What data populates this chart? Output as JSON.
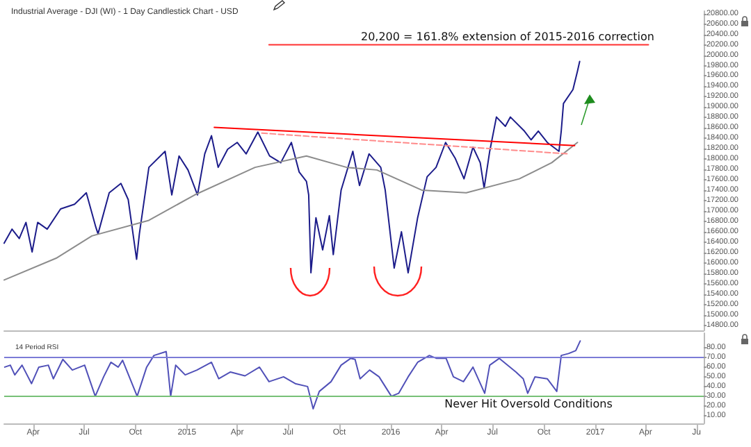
{
  "chart_data": [
    {
      "type": "line",
      "title": "Industrial Average - DJI (WI) - 1 Day Candlestick Chart - USD",
      "xlim": [
        "2014-02-08",
        "2017-07-14"
      ],
      "ylim": [
        14700,
        20850
      ],
      "yticks": [
        {
          "value": 14800,
          "label": "14800.00"
        },
        {
          "value": 15000,
          "label": "15000.00"
        },
        {
          "value": 15200,
          "label": "15200.00"
        },
        {
          "value": 15400,
          "label": "15400.00"
        },
        {
          "value": 15600,
          "label": "15600.00"
        },
        {
          "value": 15800,
          "label": "15800.00"
        },
        {
          "value": 16000,
          "label": "16000.00"
        },
        {
          "value": 16200,
          "label": "16200.00"
        },
        {
          "value": 16400,
          "label": "16400.00"
        },
        {
          "value": 16600,
          "label": "16600.00"
        },
        {
          "value": 16800,
          "label": "16800.00"
        },
        {
          "value": 17000,
          "label": "17000.00"
        },
        {
          "value": 17200,
          "label": "17200.00"
        },
        {
          "value": 17400,
          "label": "17400.00"
        },
        {
          "value": 17600,
          "label": "17600.00"
        },
        {
          "value": 17800,
          "label": "17800.00"
        },
        {
          "value": 18000,
          "label": "18000.00"
        },
        {
          "value": 18200,
          "label": "18200.00"
        },
        {
          "value": 18400,
          "label": "18400.00"
        },
        {
          "value": 18600,
          "label": "18600.00"
        },
        {
          "value": 18800,
          "label": "18800.00"
        },
        {
          "value": 19000,
          "label": "19000.00"
        },
        {
          "value": 19200,
          "label": "19200.00"
        },
        {
          "value": 19400,
          "label": "19400.00"
        },
        {
          "value": 19600,
          "label": "19600.00"
        },
        {
          "value": 19800,
          "label": "19800.00"
        },
        {
          "value": 20000,
          "label": "20000.00"
        },
        {
          "value": 20200,
          "label": "20200.00"
        },
        {
          "value": 20400,
          "label": "20400.00"
        },
        {
          "value": 20600,
          "label": "20600.00"
        },
        {
          "value": 20800,
          "label": "20800.00"
        }
      ],
      "tick_labels": "y",
      "grid": false,
      "marker": "none",
      "annotations": [
        {
          "text": "20,200 = 161.8% extension of 2015-2016 correction",
          "x": "2016-07-28",
          "y": 20200
        }
      ],
      "series": [
        {
          "color": "#1c1c8a",
          "x": [
            "2014-02-08",
            "2014-02-22",
            "2014-03-07",
            "2014-03-19",
            "2014-03-30",
            "2014-04-09",
            "2014-04-26",
            "2014-05-20",
            "2014-06-14",
            "2014-07-05",
            "2014-07-22",
            "2014-07-26",
            "2014-08-15",
            "2014-09-05",
            "2014-09-18",
            "2014-10-03",
            "2014-10-08",
            "2014-10-25",
            "2014-11-23",
            "2014-12-05",
            "2014-12-18",
            "2015-01-03",
            "2015-01-20",
            "2015-02-02",
            "2015-02-14",
            "2015-02-26",
            "2015-03-15",
            "2015-04-01",
            "2015-04-17",
            "2015-05-08",
            "2015-05-29",
            "2015-06-18",
            "2015-07-07",
            "2015-07-21",
            "2015-08-03",
            "2015-08-07",
            "2015-08-11",
            "2015-08-20",
            "2015-09-01",
            "2015-09-13",
            "2015-09-20",
            "2015-10-04",
            "2015-10-25",
            "2015-11-06",
            "2015-11-23",
            "2015-12-14",
            "2015-12-22",
            "2016-01-07",
            "2016-01-20",
            "2016-02-01",
            "2016-02-18",
            "2016-03-06",
            "2016-03-22",
            "2016-04-08",
            "2016-04-25",
            "2016-05-11",
            "2016-05-27",
            "2016-06-09",
            "2016-06-16",
            "2016-06-26",
            "2016-07-08",
            "2016-07-24",
            "2016-08-02",
            "2016-08-27",
            "2016-09-08",
            "2016-09-21",
            "2016-10-07",
            "2016-10-28",
            "2016-11-01",
            "2016-11-05",
            "2016-11-22",
            "2016-11-30",
            "2016-12-04"
          ],
          "values": [
            16380,
            16650,
            16470,
            16780,
            16210,
            16780,
            16650,
            17040,
            17130,
            17350,
            16690,
            16560,
            17350,
            17530,
            17220,
            16070,
            16560,
            17840,
            18150,
            17310,
            18060,
            17790,
            17310,
            18100,
            18450,
            17840,
            18190,
            18320,
            18100,
            18520,
            18060,
            17930,
            18320,
            17750,
            17570,
            17310,
            15810,
            16870,
            16250,
            16910,
            16160,
            17400,
            18150,
            17490,
            18100,
            17840,
            17400,
            15900,
            16600,
            15810,
            16870,
            17660,
            17840,
            18320,
            18020,
            17620,
            18230,
            17930,
            17440,
            18150,
            18810,
            18630,
            18810,
            18540,
            18370,
            18540,
            18320,
            18150,
            18540,
            19070,
            19340,
            19690,
            19880
          ]
        },
        {
          "color": "#8c8c8c",
          "x": [
            "2014-02-08",
            "2014-05-12",
            "2014-07-15",
            "2014-10-25",
            "2015-01-15",
            "2015-05-03",
            "2015-08-03",
            "2015-10-14",
            "2015-12-07",
            "2016-02-26",
            "2016-05-15",
            "2016-08-18",
            "2016-10-15",
            "2016-11-30"
          ],
          "values": [
            15670,
            16090,
            16520,
            16820,
            17310,
            17840,
            18060,
            17840,
            17790,
            17400,
            17350,
            17620,
            17930,
            18320
          ]
        },
        {
          "color": "#ff0000",
          "x": [
            "2015-02-19",
            "2016-11-25"
          ],
          "values": [
            18610,
            18260
          ]
        },
        {
          "color": "#ff8a8a",
          "line_style": "dashed",
          "x": [
            "2015-05-15",
            "2016-11-14"
          ],
          "values": [
            18500,
            18100
          ]
        },
        {
          "color": "#ff3030",
          "x": [
            "2015-05-28",
            "2017-04-06"
          ],
          "values": [
            20200,
            20200
          ]
        }
      ]
    },
    {
      "type": "line",
      "title": "14 Period RSI",
      "xlim": [
        "2014-02-08",
        "2017-07-14"
      ],
      "ylim": [
        2,
        95
      ],
      "xticks": [
        {
          "value": "2014-04-01",
          "label": "Apr"
        },
        {
          "value": "2014-07-01",
          "label": "Jul"
        },
        {
          "value": "2014-10-01",
          "label": "Oct"
        },
        {
          "value": "2015-01-01",
          "label": "2015"
        },
        {
          "value": "2015-04-01",
          "label": "Apr"
        },
        {
          "value": "2015-07-01",
          "label": "Jul"
        },
        {
          "value": "2015-10-01",
          "label": "Oct"
        },
        {
          "value": "2016-01-01",
          "label": "2016"
        },
        {
          "value": "2016-04-01",
          "label": "Apr"
        },
        {
          "value": "2016-07-01",
          "label": "Jul"
        },
        {
          "value": "2016-10-01",
          "label": "Oct"
        },
        {
          "value": "2017-01-01",
          "label": "2017"
        },
        {
          "value": "2017-04-01",
          "label": "Apr"
        },
        {
          "value": "2017-07-01",
          "label": "Ju"
        }
      ],
      "yticks": [
        {
          "value": 10,
          "label": "10.00"
        },
        {
          "value": 20,
          "label": "20.00"
        },
        {
          "value": 30,
          "label": "30.00"
        },
        {
          "value": 40,
          "label": "40.00"
        },
        {
          "value": 50,
          "label": "50.00"
        },
        {
          "value": 60,
          "label": "60.00"
        },
        {
          "value": 70,
          "label": "70.00"
        },
        {
          "value": 80,
          "label": "80.00"
        }
      ],
      "grid": false,
      "marker": "none",
      "ref_lines": [
        {
          "axis": "y",
          "value": 70,
          "color": "#7b7bd6"
        },
        {
          "axis": "y",
          "value": 30,
          "color": "#77c077"
        }
      ],
      "annotations": [
        "Never Hit Oversold Conditions"
      ],
      "series": [
        {
          "color": "#5050b8",
          "x": [
            "2014-02-09",
            "2014-02-19",
            "2014-02-27",
            "2014-03-12",
            "2014-03-29",
            "2014-04-11",
            "2014-04-28",
            "2014-05-07",
            "2014-05-24",
            "2014-06-10",
            "2014-07-02",
            "2014-07-21",
            "2014-08-05",
            "2014-08-18",
            "2014-08-31",
            "2014-09-08",
            "2014-10-04",
            "2014-10-21",
            "2014-11-03",
            "2014-11-25",
            "2014-12-03",
            "2014-12-12",
            "2014-12-29",
            "2015-01-19",
            "2015-02-14",
            "2015-02-27",
            "2015-03-20",
            "2015-04-15",
            "2015-05-11",
            "2015-05-28",
            "2015-06-23",
            "2015-07-14",
            "2015-08-05",
            "2015-08-15",
            "2015-08-26",
            "2015-09-16",
            "2015-10-04",
            "2015-10-21",
            "2015-10-29",
            "2015-11-07",
            "2015-11-24",
            "2015-12-11",
            "2016-01-02",
            "2016-01-15",
            "2016-02-01",
            "2016-02-18",
            "2016-03-10",
            "2016-03-23",
            "2016-04-09",
            "2016-04-22",
            "2016-05-10",
            "2016-05-27",
            "2016-06-17",
            "2016-06-26",
            "2016-07-13",
            "2016-08-12",
            "2016-08-25",
            "2016-09-02",
            "2016-09-15",
            "2016-10-07",
            "2016-10-24",
            "2016-11-01",
            "2016-11-14",
            "2016-11-27",
            "2016-12-05"
          ],
          "values": [
            60,
            62,
            52,
            62,
            43,
            60,
            62,
            48,
            68,
            57,
            62,
            30,
            50,
            65,
            60,
            67,
            30,
            60,
            72,
            76,
            30,
            62,
            52,
            57,
            65,
            48,
            55,
            51,
            60,
            45,
            50,
            43,
            40,
            17,
            35,
            45,
            62,
            69,
            68,
            48,
            57,
            50,
            30,
            33,
            50,
            65,
            72,
            69,
            69,
            50,
            45,
            60,
            33,
            62,
            69,
            55,
            48,
            33,
            50,
            48,
            35,
            72,
            74,
            77,
            87
          ]
        }
      ]
    }
  ]
}
